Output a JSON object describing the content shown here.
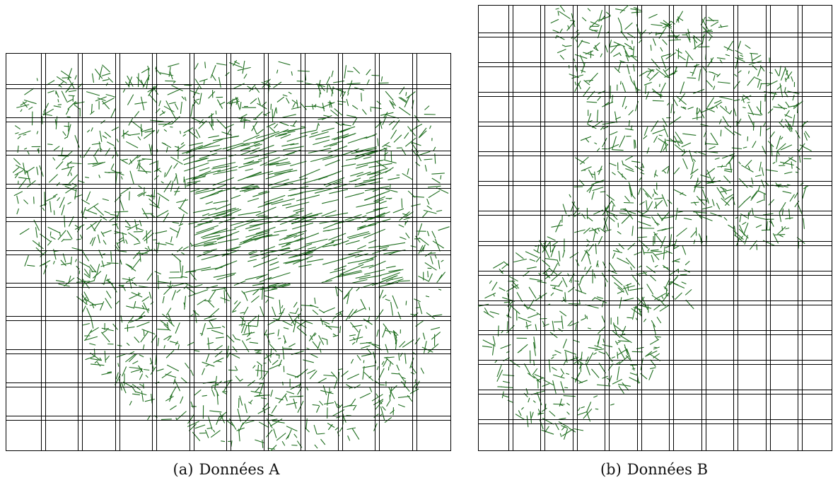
{
  "figure": {
    "panels": [
      {
        "id": "a",
        "label": "(a)",
        "caption": "Données A",
        "segment_color": "#1f6e1f",
        "grid_color": "#000000",
        "grid_columns": 12,
        "grid_rows": 12,
        "grid_lines_doubled": true
      },
      {
        "id": "b",
        "label": "(b)",
        "caption": "Données B",
        "segment_color": "#1f6e1f",
        "grid_color": "#000000",
        "grid_columns": 11,
        "grid_rows": 15,
        "grid_lines_doubled": true
      }
    ]
  }
}
